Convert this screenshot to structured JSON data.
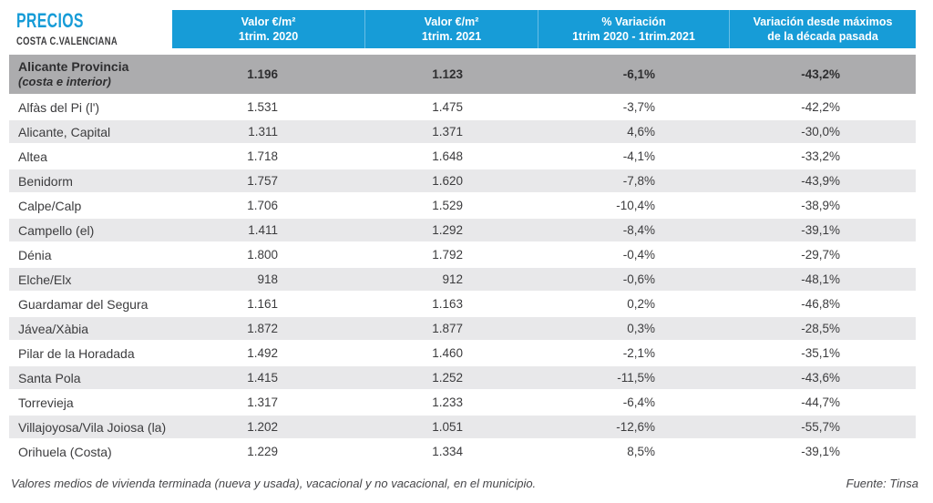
{
  "brand": {
    "title": "PRECIOS",
    "subtitle": "COSTA C.VALENCIANA"
  },
  "colors": {
    "accent_cyan": "#179CD7",
    "summary_row_bg": "#ACACAE",
    "stripe_bg": "#E8E8EA",
    "body_text": "#3C3C3E",
    "header_text": "#FFFFFF"
  },
  "chart_data": {
    "type": "table",
    "title": "PRECIOS",
    "subtitle": "COSTA C.VALENCIANA",
    "column_headers": [
      {
        "line1": "Valor €/m²",
        "line2": "1trim. 2020"
      },
      {
        "line1": "Valor €/m²",
        "line2": "1trim. 2021"
      },
      {
        "line1": "% Variación",
        "line2": "1trim 2020 - 1trim.2021"
      },
      {
        "line1": "Variación desde máximos",
        "line2": "de la década pasada"
      }
    ],
    "summary_row": {
      "name": "Alicante Provincia",
      "name_note": "(costa e interior)",
      "valor_2020": "1.196",
      "valor_2021": "1.123",
      "variacion": "-6,1%",
      "variacion_maximos": "-43,2%"
    },
    "rows": [
      {
        "name": "Alfàs del Pi (l')",
        "valor_2020": "1.531",
        "valor_2021": "1.475",
        "variacion": "-3,7%",
        "variacion_maximos": "-42,2%"
      },
      {
        "name": "Alicante, Capital",
        "valor_2020": "1.311",
        "valor_2021": "1.371",
        "variacion": "4,6%",
        "variacion_maximos": "-30,0%"
      },
      {
        "name": "Altea",
        "valor_2020": "1.718",
        "valor_2021": "1.648",
        "variacion": "-4,1%",
        "variacion_maximos": "-33,2%"
      },
      {
        "name": "Benidorm",
        "valor_2020": "1.757",
        "valor_2021": "1.620",
        "variacion": "-7,8%",
        "variacion_maximos": "-43,9%"
      },
      {
        "name": "Calpe/Calp",
        "valor_2020": "1.706",
        "valor_2021": "1.529",
        "variacion": "-10,4%",
        "variacion_maximos": "-38,9%"
      },
      {
        "name": "Campello (el)",
        "valor_2020": "1.411",
        "valor_2021": "1.292",
        "variacion": "-8,4%",
        "variacion_maximos": "-39,1%"
      },
      {
        "name": "Dénia",
        "valor_2020": "1.800",
        "valor_2021": "1.792",
        "variacion": "-0,4%",
        "variacion_maximos": "-29,7%"
      },
      {
        "name": "Elche/Elx",
        "valor_2020": "918",
        "valor_2021": "912",
        "variacion": "-0,6%",
        "variacion_maximos": "-48,1%"
      },
      {
        "name": "Guardamar del Segura",
        "valor_2020": "1.161",
        "valor_2021": "1.163",
        "variacion": "0,2%",
        "variacion_maximos": "-46,8%"
      },
      {
        "name": "Jávea/Xàbia",
        "valor_2020": "1.872",
        "valor_2021": "1.877",
        "variacion": "0,3%",
        "variacion_maximos": "-28,5%"
      },
      {
        "name": "Pilar de la Horadada",
        "valor_2020": "1.492",
        "valor_2021": "1.460",
        "variacion": "-2,1%",
        "variacion_maximos": "-35,1%"
      },
      {
        "name": "Santa Pola",
        "valor_2020": "1.415",
        "valor_2021": "1.252",
        "variacion": "-11,5%",
        "variacion_maximos": "-43,6%"
      },
      {
        "name": "Torrevieja",
        "valor_2020": "1.317",
        "valor_2021": "1.233",
        "variacion": "-6,4%",
        "variacion_maximos": "-44,7%"
      },
      {
        "name": "Villajoyosa/Vila Joiosa (la)",
        "valor_2020": "1.202",
        "valor_2021": "1.051",
        "variacion": "-12,6%",
        "variacion_maximos": "-55,7%"
      },
      {
        "name": "Orihuela (Costa)",
        "valor_2020": "1.229",
        "valor_2021": "1.334",
        "variacion": "8,5%",
        "variacion_maximos": "-39,1%"
      }
    ],
    "footnote": "Valores medios de vivienda terminada (nueva y usada), vacacional y no vacacional, en el municipio.",
    "source": "Fuente: Tinsa"
  }
}
